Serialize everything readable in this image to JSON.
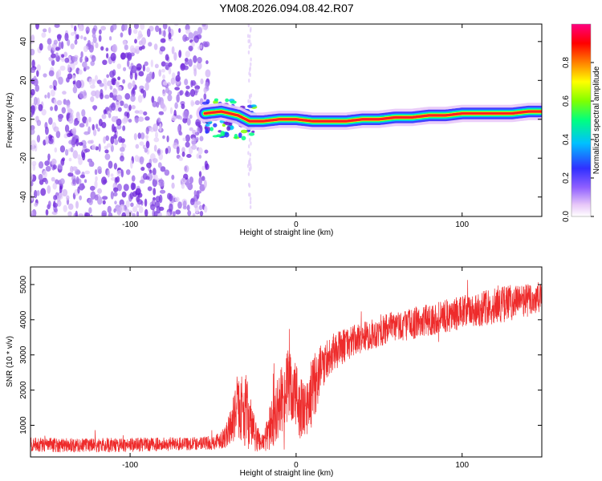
{
  "title": "YM08.2026.094.08.42.R07",
  "chart_data": [
    {
      "type": "heatmap",
      "xlabel": "Height of straight line (km)",
      "ylabel": "Frequency (Hz)",
      "xlim": [
        -160,
        148
      ],
      "ylim": [
        -50,
        49
      ],
      "xticks": [
        -100,
        0,
        100
      ],
      "yticks": [
        -40,
        -20,
        0,
        20,
        40
      ],
      "colorbar": {
        "label": "Normalized spectral amplitude",
        "range": [
          0,
          1
        ],
        "ticks": [
          0.0,
          0.2,
          0.4,
          0.6,
          0.8
        ],
        "colors": [
          "#ffffff",
          "#e8c8f8",
          "#9060ff",
          "#3030ff",
          "#00c0ff",
          "#00ff80",
          "#80ff00",
          "#ffff00",
          "#ff8000",
          "#ff0000",
          "#ff0080"
        ]
      },
      "ridge": {
        "x": [
          -55,
          -45,
          -35,
          -28,
          -20,
          -10,
          0,
          10,
          20,
          30,
          40,
          50,
          60,
          70,
          80,
          90,
          100,
          110,
          120,
          130,
          140,
          148
        ],
        "y": [
          3,
          4,
          2,
          -1,
          -1,
          0,
          0,
          -1,
          -1,
          -1,
          0,
          0,
          1,
          1,
          2,
          2,
          3,
          3,
          3,
          3,
          4,
          4
        ]
      },
      "noise_region_x": [
        -160,
        -53
      ]
    },
    {
      "type": "line",
      "xlabel": "Height of straight line (km)",
      "ylabel": "SNR (10 * v/v)",
      "xlim": [
        -160,
        148
      ],
      "ylim": [
        100,
        5500
      ],
      "xticks": [
        -100,
        0,
        100
      ],
      "yticks": [
        1000,
        2000,
        3000,
        4000,
        5000
      ],
      "color": "#ee2b2b",
      "series_envelope": {
        "x": [
          -160,
          -120,
          -80,
          -50,
          -42,
          -35,
          -30,
          -25,
          -20,
          -15,
          -10,
          -5,
          0,
          5,
          10,
          15,
          20,
          30,
          40,
          60,
          80,
          100,
          120,
          130,
          140,
          148
        ],
        "mean": [
          450,
          430,
          460,
          500,
          700,
          1500,
          1400,
          700,
          500,
          1000,
          1600,
          2100,
          1800,
          1300,
          2000,
          2600,
          3000,
          3300,
          3500,
          3800,
          4000,
          4200,
          4400,
          4500,
          4550,
          4600
        ],
        "spread": [
          300,
          300,
          280,
          280,
          500,
          1200,
          1500,
          700,
          400,
          1000,
          1300,
          1500,
          1500,
          1200,
          1400,
          1000,
          800,
          700,
          600,
          650,
          650,
          700,
          750,
          750,
          700,
          700
        ]
      }
    }
  ]
}
